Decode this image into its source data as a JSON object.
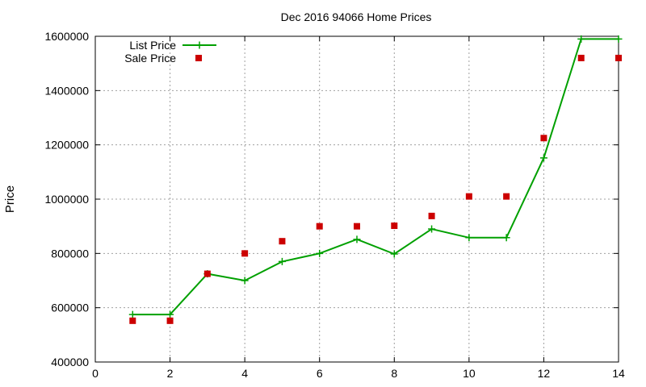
{
  "chart_data": {
    "type": "line",
    "title": "Dec 2016 94066 Home Prices",
    "xlabel": "",
    "ylabel": "Price",
    "xlim": [
      0,
      14
    ],
    "ylim": [
      400000,
      1600000
    ],
    "xticks": [
      "0",
      "2",
      "4",
      "6",
      "8",
      "10",
      "12",
      "14"
    ],
    "yticks": [
      "400000",
      "600000",
      "800000",
      "1000000",
      "1200000",
      "1400000",
      "1600000"
    ],
    "grid": true,
    "legend": "top-left",
    "series": [
      {
        "name": "List Price",
        "style": "line-points",
        "color": "#00a000",
        "x": [
          1,
          2,
          3,
          4,
          5,
          6,
          7,
          8,
          9,
          10,
          11,
          12,
          13,
          14
        ],
        "y": [
          575000,
          575000,
          725000,
          700000,
          770000,
          800000,
          852000,
          798000,
          890000,
          858000,
          858000,
          1152000,
          1590000,
          1590000
        ]
      },
      {
        "name": "Sale Price",
        "style": "points",
        "color": "#cc0000",
        "x": [
          1,
          2,
          3,
          4,
          5,
          6,
          7,
          8,
          9,
          10,
          11,
          12,
          13,
          14
        ],
        "y": [
          552000,
          552000,
          725000,
          800000,
          845000,
          900000,
          900000,
          902000,
          938000,
          1010000,
          1010000,
          1225000,
          1520000,
          1520000
        ]
      }
    ]
  }
}
